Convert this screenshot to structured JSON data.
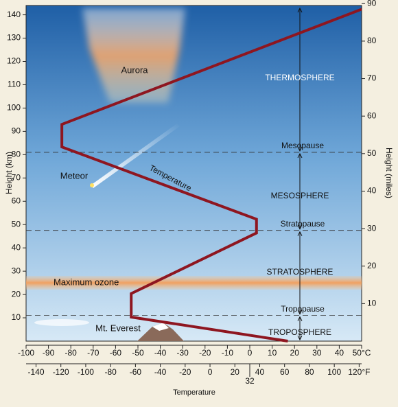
{
  "chart_data": {
    "type": "line",
    "ylabel": "Height (km)",
    "y2label": "Height (miles)",
    "xlabel": "Temperature",
    "xlim": [
      -100,
      50
    ],
    "xticks": [
      -100,
      -90,
      -80,
      -70,
      -60,
      -50,
      -40,
      -30,
      -20,
      -10,
      0,
      10,
      20,
      30,
      40,
      {
        "value": 50,
        "label": "50°C"
      }
    ],
    "x2lim": [
      -148,
      122
    ],
    "x2ticks": [
      -140,
      -120,
      -100,
      -80,
      -60,
      -40,
      -20,
      0,
      20,
      40,
      60,
      80,
      100,
      {
        "value": 120,
        "label": "120°F"
      }
    ],
    "freezing_tick": 32,
    "ylim": [
      0,
      144
    ],
    "yticks": [
      10,
      20,
      30,
      40,
      50,
      60,
      70,
      80,
      90,
      100,
      110,
      120,
      130,
      140
    ],
    "y2lim": [
      0,
      89.5
    ],
    "y2ticks": [
      10,
      20,
      30,
      40,
      50,
      60,
      70,
      80,
      90
    ],
    "series": [
      {
        "name": "Temperature",
        "color": "#8e1620",
        "x": [
          17,
          -53,
          -53,
          3,
          3,
          -84,
          -84,
          50
        ],
        "values": [
          0,
          10.3,
          20.4,
          46.4,
          52.3,
          83.3,
          93,
          142.4
        ]
      }
    ],
    "boundaries": [
      {
        "name": "Mesopause",
        "height": 81
      },
      {
        "name": "Stratopause",
        "height": 47.5
      },
      {
        "name": "Tropopause",
        "height": 11
      }
    ],
    "layers": [
      "THERMOSPHERE",
      "MESOSPHERE",
      "STRATOSPHERE",
      "TROPOSPHERE"
    ],
    "ozone": {
      "label": "Maximum ozone",
      "range": [
        22,
        28
      ]
    },
    "annotations": [
      "Aurora",
      "Meteor",
      "Mt. Everest"
    ]
  }
}
